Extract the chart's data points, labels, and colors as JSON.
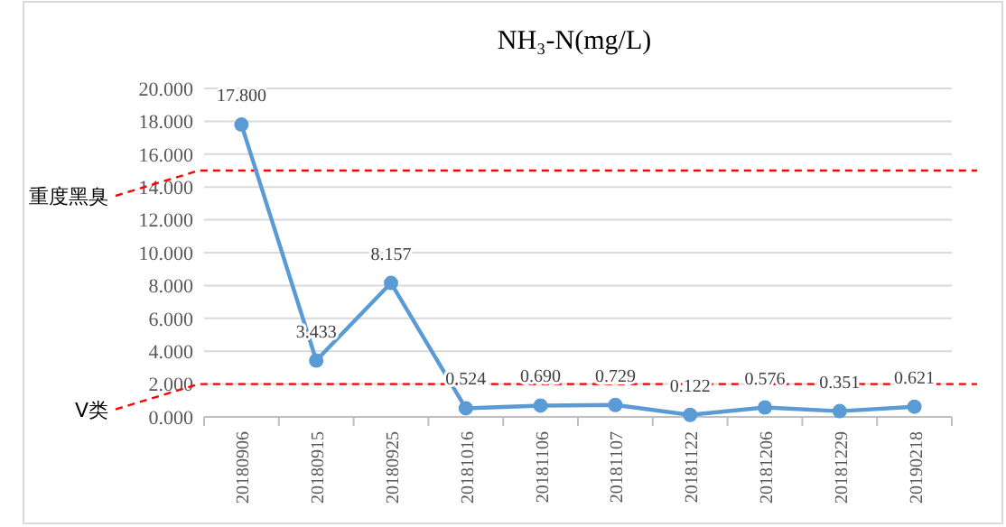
{
  "chart_data": {
    "type": "line",
    "title": "NH₃-N(mg/L)",
    "categories": [
      "20180906",
      "20180915",
      "20180925",
      "20181016",
      "20181106",
      "20181107",
      "20181122",
      "20181206",
      "20181229",
      "20190218"
    ],
    "series": [
      {
        "color": "#5b9bd5",
        "values": [
          17.8,
          3.433,
          8.157,
          0.524,
          0.69,
          0.729,
          0.122,
          0.576,
          0.351,
          0.621
        ],
        "value_labels": [
          "17.800",
          "3.433",
          "8.157",
          "0.524",
          "0.690",
          "0.729",
          "0.122",
          "0.576",
          "0.351",
          "0.621"
        ]
      }
    ],
    "ylim": [
      0,
      20
    ],
    "yticks": [
      {
        "value": 0,
        "label": "0.000"
      },
      {
        "value": 2,
        "label": "2.000"
      },
      {
        "value": 4,
        "label": "4.000"
      },
      {
        "value": 6,
        "label": "6.000"
      },
      {
        "value": 8,
        "label": "8.000"
      },
      {
        "value": 10,
        "label": "10.000"
      },
      {
        "value": 12,
        "label": "12.000"
      },
      {
        "value": 14,
        "label": "14.000"
      },
      {
        "value": 16,
        "label": "16.000"
      },
      {
        "value": 18,
        "label": "18.000"
      },
      {
        "value": 20,
        "label": "20.000"
      }
    ],
    "grid": "y",
    "marker": "circle",
    "line_style": "solid",
    "ref_lines": [
      {
        "axis": "y",
        "value": 15,
        "label": "重度黑臭",
        "color": "#ff0000",
        "line_style": "dashed"
      },
      {
        "axis": "y",
        "value": 2,
        "label": "V类",
        "color": "#ff0000",
        "line_style": "dashed"
      }
    ]
  }
}
